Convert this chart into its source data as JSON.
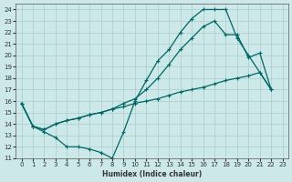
{
  "xlabel": "Humidex (Indice chaleur)",
  "bg_color": "#cce8e8",
  "grid_color": "#aacccc",
  "line_color": "#006666",
  "xlim": [
    -0.5,
    23.5
  ],
  "ylim": [
    11,
    24.5
  ],
  "yticks": [
    11,
    12,
    13,
    14,
    15,
    16,
    17,
    18,
    19,
    20,
    21,
    22,
    23,
    24
  ],
  "xticks": [
    0,
    1,
    2,
    3,
    4,
    5,
    6,
    7,
    8,
    9,
    10,
    11,
    12,
    13,
    14,
    15,
    16,
    17,
    18,
    19,
    20,
    21,
    22,
    23
  ],
  "line1_x": [
    0,
    1,
    2,
    3,
    4,
    5,
    6,
    7,
    8,
    9,
    10,
    11,
    12,
    13,
    14,
    15,
    16,
    17,
    18,
    19,
    20,
    21,
    22
  ],
  "line1_y": [
    15.8,
    13.8,
    13.3,
    12.8,
    12.0,
    12.0,
    11.8,
    11.5,
    11.0,
    13.3,
    16.0,
    17.8,
    19.5,
    20.5,
    22.0,
    23.2,
    24.0,
    24.0,
    24.0,
    21.5,
    20.0,
    18.5,
    17.0
  ],
  "line2_x": [
    0,
    1,
    2,
    3,
    4,
    5,
    6,
    7,
    8,
    9,
    10,
    11,
    12,
    13,
    14,
    15,
    16,
    17,
    18,
    19,
    20,
    21,
    22
  ],
  "line2_y": [
    15.8,
    13.8,
    13.5,
    14.0,
    14.3,
    14.5,
    14.8,
    15.0,
    15.3,
    15.8,
    16.2,
    17.0,
    18.0,
    19.2,
    20.5,
    21.5,
    22.5,
    23.0,
    21.8,
    21.8,
    19.8,
    20.2,
    17.0
  ],
  "line3_x": [
    0,
    1,
    2,
    3,
    4,
    5,
    6,
    7,
    8,
    9,
    10,
    11,
    12,
    13,
    14,
    15,
    16,
    17,
    18,
    19,
    20,
    21,
    22
  ],
  "line3_y": [
    15.8,
    13.8,
    13.5,
    14.0,
    14.3,
    14.5,
    14.8,
    15.0,
    15.3,
    15.5,
    15.8,
    16.0,
    16.2,
    16.5,
    16.8,
    17.0,
    17.2,
    17.5,
    17.8,
    18.0,
    18.2,
    18.5,
    17.0
  ]
}
